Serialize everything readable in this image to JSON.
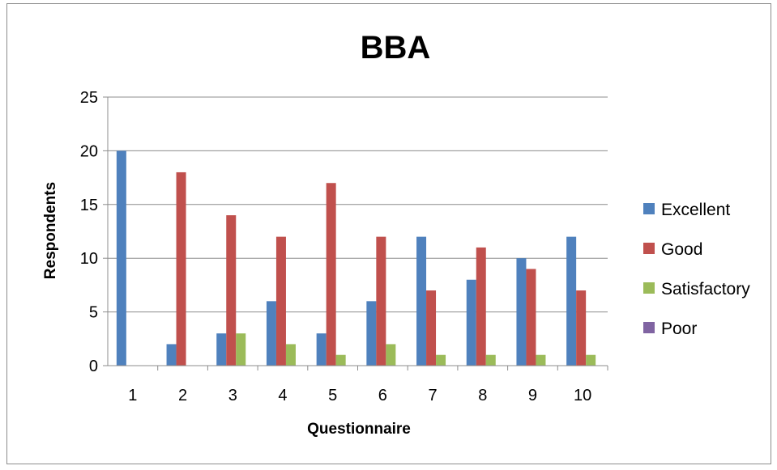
{
  "chart_data": {
    "type": "bar",
    "title": "BBA",
    "xlabel": "Questionnaire",
    "ylabel": "Respondents",
    "categories": [
      "1",
      "2",
      "3",
      "4",
      "5",
      "6",
      "7",
      "8",
      "9",
      "10"
    ],
    "series": [
      {
        "name": "Excellent",
        "color": "#4F81BD",
        "values": [
          20,
          2,
          3,
          6,
          3,
          6,
          12,
          8,
          10,
          12
        ]
      },
      {
        "name": "Good",
        "color": "#C0504D",
        "values": [
          0,
          18,
          14,
          12,
          17,
          12,
          7,
          11,
          9,
          7
        ]
      },
      {
        "name": "Satisfactory",
        "color": "#9BBB59",
        "values": [
          0,
          0,
          3,
          2,
          1,
          2,
          1,
          1,
          1,
          1
        ]
      },
      {
        "name": "Poor",
        "color": "#8064A2",
        "values": [
          0,
          0,
          0,
          0,
          0,
          0,
          0,
          0,
          0,
          0
        ]
      }
    ],
    "ylim": [
      0,
      25
    ],
    "yticks": [
      0,
      5,
      10,
      15,
      20,
      25
    ],
    "grid": true,
    "legend": "right"
  }
}
